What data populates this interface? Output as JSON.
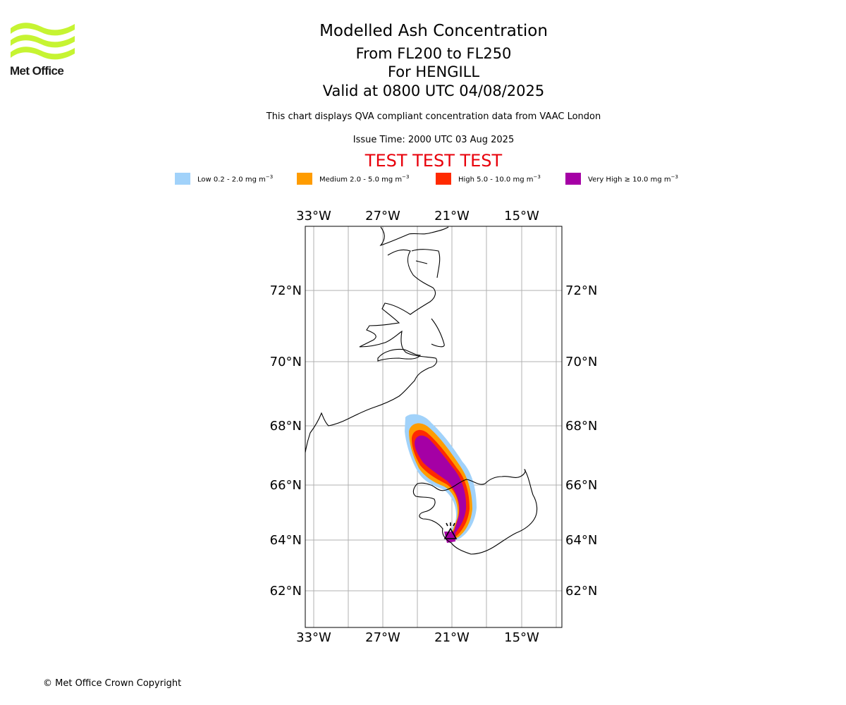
{
  "header": {
    "logo_text": "Met Office",
    "title": "Modelled Ash Concentration",
    "flight_levels": "From FL200 to FL250",
    "volcano": "For HENGILL",
    "valid_time": "Valid at 0800 UTC 04/08/2025",
    "note": "This chart displays QVA compliant concentration data from VAAC London",
    "issue_time": "Issue Time: 2000 UTC 03 Aug 2025",
    "test_banner": "TEST TEST TEST"
  },
  "legend": {
    "items": [
      {
        "label": "Low 0.2 - 2.0 mg m",
        "color": "#a1d2fa"
      },
      {
        "label": "Medium 2.0 - 5.0 mg m",
        "color": "#ff9c00"
      },
      {
        "label": "High 5.0 - 10.0 mg m",
        "color": "#ff2a00"
      },
      {
        "label": "Very High ≥ 10.0 mg m",
        "color": "#a500a5"
      }
    ],
    "unit_exponent": "−3"
  },
  "map": {
    "lon_labels": [
      "33°W",
      "27°W",
      "21°W",
      "15°W"
    ],
    "lat_labels": [
      "72°N",
      "70°N",
      "68°N",
      "66°N",
      "64°N",
      "62°N"
    ],
    "volcano_marker": "volcano-icon",
    "grid": true
  },
  "footer": {
    "copyright": "© Met Office Crown Copyright"
  }
}
